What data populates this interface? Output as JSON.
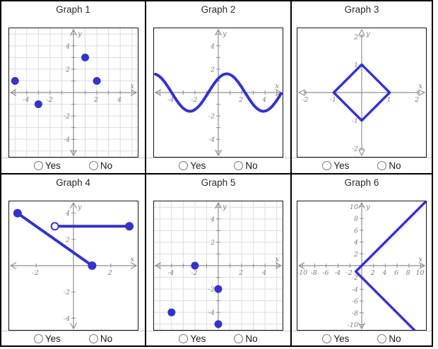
{
  "radio_options": [
    "Yes",
    "No"
  ],
  "colors": {
    "accent": "#3333cc",
    "axis": "#8f8f8f",
    "grid": "#dcdcdc",
    "tick_label": "#7d7d88",
    "border": "#000000",
    "separator": "#c9c9c9"
  },
  "cells": [
    {
      "title": "Graph 1"
    },
    {
      "title": "Graph 2"
    },
    {
      "title": "Graph 3"
    },
    {
      "title": "Graph 4"
    },
    {
      "title": "Graph 5"
    },
    {
      "title": "Graph 6"
    }
  ],
  "chart_data": [
    {
      "id": "graph-1",
      "type": "scatter",
      "xlim": [
        -5.5,
        5.5
      ],
      "ylim": [
        -5.5,
        5.5
      ],
      "grid": true,
      "tick_step": 1,
      "label_step": 2,
      "xlabel": "x",
      "ylabel": "y",
      "arrow_style": "chevron",
      "points": [
        [
          -5,
          1
        ],
        [
          -3,
          -1
        ],
        [
          1,
          3
        ],
        [
          2,
          1
        ]
      ]
    },
    {
      "id": "graph-2",
      "type": "line",
      "xlim": [
        -5.5,
        5.5
      ],
      "ylim": [
        -5.5,
        5.5
      ],
      "grid": false,
      "tick_step": 1,
      "label_step": 2,
      "xlabel": "x",
      "ylabel": "y",
      "arrow_style": "chevron",
      "curve": {
        "shape": "sine",
        "amplitude": 1.6,
        "phase": 0.85,
        "period": 6.2832
      }
    },
    {
      "id": "graph-3",
      "type": "polygon",
      "xlim": [
        -2.3,
        2.3
      ],
      "ylim": [
        -2.3,
        2.3
      ],
      "grid": false,
      "tick_step": 1,
      "label_step": 1,
      "xlabel": "x",
      "ylabel": "y",
      "arrow_style": "triangle",
      "vertices": [
        [
          0,
          1
        ],
        [
          1,
          0
        ],
        [
          0,
          -1
        ],
        [
          -1,
          0
        ]
      ]
    },
    {
      "id": "graph-4",
      "type": "segments",
      "xlim": [
        -3.45,
        3.45
      ],
      "ylim": [
        -4.9,
        4.9
      ],
      "grid": false,
      "tick_step": 2,
      "label_step": 2,
      "xlabel": "x",
      "ylabel": "y",
      "arrow_style": "chevron",
      "segments": [
        {
          "from": [
            -3,
            4
          ],
          "to": [
            1,
            0
          ]
        },
        {
          "from": [
            -1,
            3
          ],
          "to": [
            3,
            3
          ]
        }
      ],
      "closed_points": [
        [
          -3,
          4
        ],
        [
          1,
          0
        ],
        [
          3,
          3
        ]
      ],
      "open_points": [
        [
          -1,
          3
        ]
      ]
    },
    {
      "id": "graph-5",
      "type": "scatter",
      "xlim": [
        -5.5,
        5.5
      ],
      "ylim": [
        -5.5,
        5.5
      ],
      "grid": true,
      "tick_step": 1,
      "label_step": 2,
      "xlabel": "x",
      "ylabel": "y",
      "arrow_style": "chevron",
      "points": [
        [
          -2,
          0
        ],
        [
          0,
          -2
        ],
        [
          -4,
          -4
        ],
        [
          0,
          -5
        ]
      ]
    },
    {
      "id": "graph-6",
      "type": "polyline",
      "xlim": [
        -10.9,
        10.9
      ],
      "ylim": [
        -10.9,
        10.9
      ],
      "grid": false,
      "tick_step": 2,
      "label_step": 2,
      "xlabel": "x",
      "ylabel": "y",
      "arrow_style": "chevron",
      "points": [
        [
          10.9,
          10.9
        ],
        [
          -1,
          -1
        ],
        [
          8.9,
          -10.9
        ]
      ]
    }
  ]
}
